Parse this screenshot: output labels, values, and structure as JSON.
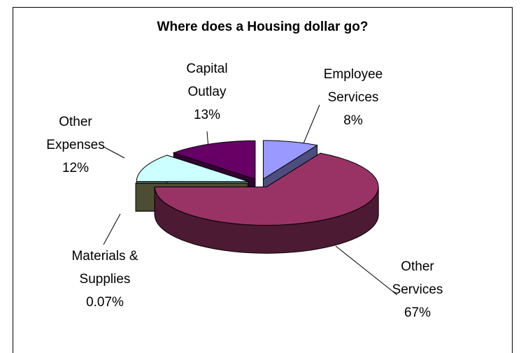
{
  "chart_data": {
    "type": "pie3d",
    "title": "Where does a Housing dollar go?",
    "categories": [
      "Employee Services",
      "Other Services",
      "Materials & Supplies",
      "Other Expenses",
      "Capital Outlay"
    ],
    "values": [
      8,
      67,
      0.07,
      12,
      13
    ],
    "value_labels": [
      "8%",
      "67%",
      "0.07%",
      "12%",
      "13%"
    ],
    "colors": [
      "#9999ff",
      "#993366",
      "#808066",
      "#ccffff",
      "#660066"
    ],
    "side_colors": [
      "#4d4d80",
      "#4d1a33",
      "#4d4d33",
      "#668080",
      "#330033"
    ]
  }
}
